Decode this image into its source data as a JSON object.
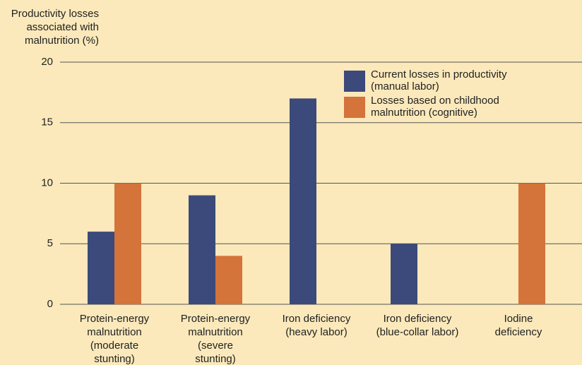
{
  "chart_data": {
    "type": "bar",
    "ylabel": [
      "Productivity losses",
      "associated with",
      "malnutrition (%)"
    ],
    "categories": [
      [
        "Protein-energy",
        "malnutrition",
        "(moderate",
        "stunting)"
      ],
      [
        "Protein-energy",
        "malnutrition",
        "(severe",
        "stunting)"
      ],
      [
        "Iron deficiency",
        "(heavy labor)"
      ],
      [
        "Iron deficiency",
        "(blue-collar labor)"
      ],
      [
        "Iodine",
        "deficiency"
      ]
    ],
    "series": [
      {
        "name": [
          "Current losses in productivity",
          "(manual labor)"
        ],
        "color": "#3b4a7a",
        "values": [
          6,
          9,
          17,
          5,
          null
        ]
      },
      {
        "name": [
          "Losses based on childhood",
          "malnutrition (cognitive)"
        ],
        "color": "#d4733a",
        "values": [
          10,
          4,
          null,
          null,
          10
        ]
      }
    ],
    "ylim": [
      0,
      20
    ],
    "yticks": [
      0,
      5,
      10,
      15,
      20
    ],
    "grid": true
  }
}
